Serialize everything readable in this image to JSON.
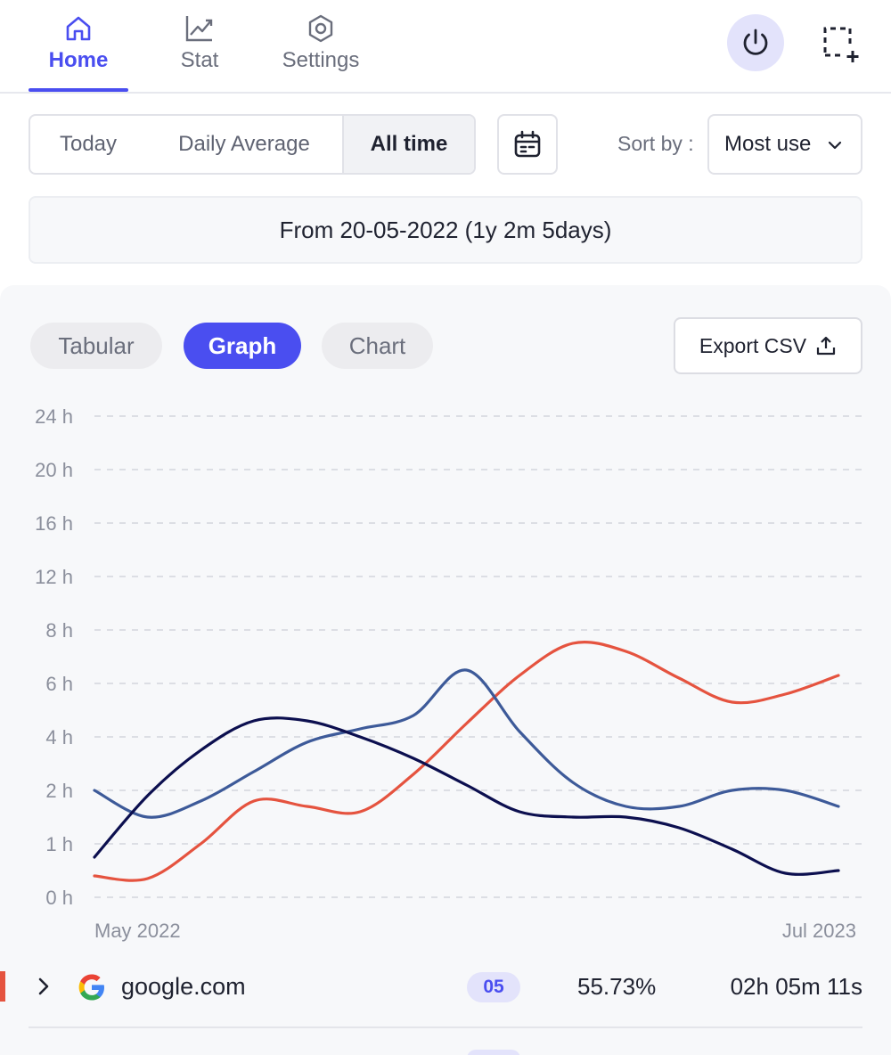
{
  "nav": {
    "tabs": [
      {
        "label": "Home",
        "icon": "home-icon",
        "active": true
      },
      {
        "label": "Stat",
        "icon": "chart-line-icon",
        "active": false
      },
      {
        "label": "Settings",
        "icon": "gear-icon",
        "active": false
      }
    ],
    "power_icon": "power-icon",
    "capture_icon": "capture-add-icon",
    "accent_color": "#4a4ef0"
  },
  "filters": {
    "periods": [
      "Today",
      "Daily Average",
      "All time"
    ],
    "selected_period": "All time",
    "calendar_icon": "calendar-icon",
    "sort_label": "Sort by :",
    "sort_value": "Most use"
  },
  "range_text": "From 20-05-2022 (1y 2m 5days)",
  "view": {
    "tabs": [
      "Tabular",
      "Graph",
      "Chart"
    ],
    "selected": "Graph",
    "export_label": "Export CSV",
    "export_icon": "upload-icon"
  },
  "chart_data": {
    "type": "line",
    "title": "",
    "xlabel": "",
    "ylabel": "",
    "y_ticks": [
      "0 h",
      "1 h",
      "2 h",
      "4 h",
      "6 h",
      "8 h",
      "12 h",
      "16 h",
      "20 h",
      "24 h"
    ],
    "x_labels": [
      "May 2022",
      "Jul 2023"
    ],
    "grid": true,
    "legend": "none",
    "x": [
      0,
      1,
      2,
      3,
      4,
      5,
      6,
      7,
      8,
      9,
      10,
      11,
      12,
      13,
      14
    ],
    "series": [
      {
        "color": "#e5533f",
        "values": [
          0.4,
          0.35,
          1.0,
          1.8,
          1.7,
          1.6,
          2.6,
          4.5,
          6.3,
          7.5,
          7.2,
          6.2,
          5.3,
          5.6,
          6.3
        ]
      },
      {
        "color": "#3d5a99",
        "values": [
          2.0,
          1.5,
          1.8,
          2.7,
          3.8,
          4.3,
          4.8,
          6.5,
          4.2,
          2.3,
          1.7,
          1.7,
          2.0,
          2.0,
          1.7
        ]
      },
      {
        "color": "#0c0f4f",
        "values": [
          0.75,
          1.9,
          3.5,
          4.6,
          4.6,
          4.0,
          3.2,
          2.2,
          1.6,
          1.5,
          1.5,
          1.3,
          0.9,
          0.45,
          0.5
        ]
      }
    ]
  },
  "rows": [
    {
      "domain": "google.com",
      "logo": "google-logo-icon",
      "visits": "05",
      "percent": "55.73%",
      "time": "02h 05m 11s",
      "color": "#e5533f"
    }
  ]
}
